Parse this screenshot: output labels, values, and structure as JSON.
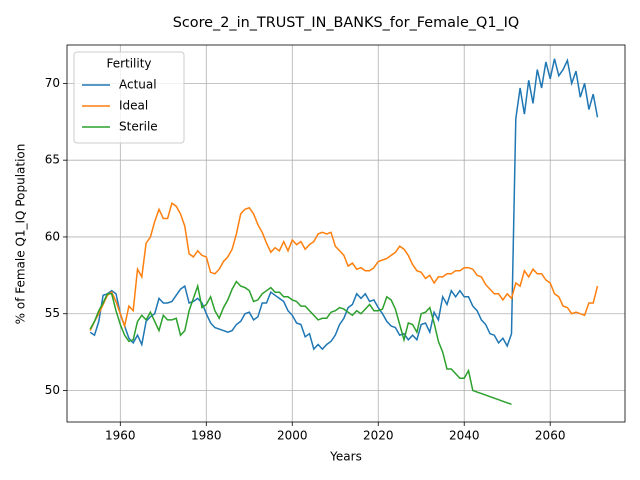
{
  "chart_data": {
    "type": "line",
    "title": "Score_2_in_TRUST_IN_BANKS_for_Female_Q1_IQ",
    "x_label": "Years",
    "y_label": "% of Female Q1_IQ Population",
    "legend_title": "Fertility",
    "legend_loc": "upper left",
    "grid": true,
    "xlim": [
      1947.6,
      2077.4
    ],
    "ylim": [
      47.95,
      72.5
    ],
    "xticks": [
      1960,
      1980,
      2000,
      2020,
      2040,
      2060
    ],
    "yticks": [
      50,
      55,
      60,
      65,
      70
    ],
    "x": [
      1953,
      1954,
      1955,
      1956,
      1957,
      1958,
      1959,
      1960,
      1961,
      1962,
      1963,
      1964,
      1965,
      1966,
      1967,
      1968,
      1969,
      1970,
      1971,
      1972,
      1973,
      1974,
      1975,
      1976,
      1977,
      1978,
      1979,
      1980,
      1981,
      1982,
      1983,
      1984,
      1985,
      1986,
      1987,
      1988,
      1989,
      1990,
      1991,
      1992,
      1993,
      1994,
      1995,
      1996,
      1997,
      1998,
      1999,
      2000,
      2001,
      2002,
      2003,
      2004,
      2005,
      2006,
      2007,
      2008,
      2009,
      2010,
      2011,
      2012,
      2013,
      2014,
      2015,
      2016,
      2017,
      2018,
      2019,
      2020,
      2021,
      2022,
      2023,
      2024,
      2025,
      2026,
      2027,
      2028,
      2029,
      2030,
      2031,
      2032,
      2033,
      2034,
      2035,
      2036,
      2037,
      2038,
      2039,
      2040,
      2041,
      2042,
      2043,
      2044,
      2045,
      2046,
      2047,
      2048,
      2049,
      2050,
      2051,
      2052,
      2053,
      2054,
      2055,
      2056,
      2057,
      2058,
      2059,
      2060,
      2061,
      2062,
      2063,
      2064,
      2065,
      2066,
      2067,
      2068,
      2069,
      2070,
      2071
    ],
    "series": [
      {
        "name": "Actual",
        "color": "#1f77b4",
        "values": [
          53.8,
          53.6,
          54.5,
          56.2,
          56.3,
          56.5,
          56.3,
          55.0,
          54.2,
          53.4,
          53.1,
          53.6,
          53.0,
          54.5,
          54.8,
          55.0,
          56.0,
          55.7,
          55.7,
          55.8,
          56.2,
          56.6,
          56.8,
          55.7,
          55.8,
          56.0,
          55.7,
          55.0,
          54.4,
          54.1,
          54.0,
          53.9,
          53.8,
          53.9,
          54.3,
          54.5,
          55.0,
          55.1,
          54.6,
          54.8,
          55.7,
          55.7,
          56.4,
          56.2,
          56.0,
          55.8,
          55.2,
          54.9,
          54.4,
          54.3,
          53.5,
          53.7,
          52.7,
          53.0,
          52.7,
          53.0,
          53.2,
          53.6,
          54.3,
          54.7,
          55.4,
          55.6,
          56.3,
          56.0,
          56.3,
          55.8,
          55.9,
          55.4,
          55.0,
          54.5,
          54.2,
          54.1,
          53.6,
          53.7,
          53.3,
          53.6,
          53.3,
          54.3,
          54.4,
          53.8,
          55.1,
          54.6,
          56.1,
          55.6,
          56.5,
          56.1,
          56.5,
          56.1,
          56.1,
          55.5,
          55.2,
          54.6,
          54.3,
          53.7,
          53.6,
          53.1,
          53.4,
          52.9,
          53.7,
          67.7,
          69.7,
          68.0,
          70.2,
          68.7,
          70.9,
          69.7,
          71.4,
          70.3,
          71.6,
          70.5,
          70.9,
          71.5,
          70.0,
          70.8,
          69.1,
          70.0,
          68.3,
          69.3,
          67.8
        ]
      },
      {
        "name": "Ideal",
        "color": "#ff7f0e",
        "values": [
          53.9,
          54.5,
          55.0,
          55.6,
          56.2,
          56.4,
          55.8,
          55.0,
          54.2,
          55.5,
          55.2,
          57.9,
          57.4,
          59.6,
          60.0,
          61.0,
          61.8,
          61.2,
          61.2,
          62.2,
          62.0,
          61.5,
          60.7,
          58.9,
          58.7,
          59.1,
          58.8,
          58.7,
          57.7,
          57.6,
          57.9,
          58.4,
          58.7,
          59.2,
          60.2,
          61.5,
          61.8,
          61.9,
          61.5,
          60.8,
          60.3,
          59.6,
          59.0,
          59.3,
          59.1,
          59.7,
          59.1,
          59.8,
          59.5,
          59.7,
          59.2,
          59.5,
          59.7,
          60.2,
          60.3,
          60.2,
          60.3,
          59.4,
          59.1,
          58.8,
          58.1,
          58.3,
          57.9,
          58.0,
          57.8,
          57.8,
          58.0,
          58.4,
          58.5,
          58.6,
          58.8,
          59.0,
          59.4,
          59.2,
          58.8,
          58.2,
          57.8,
          57.7,
          57.3,
          57.5,
          57.0,
          57.4,
          57.4,
          57.6,
          57.6,
          57.8,
          57.8,
          58.0,
          58.0,
          57.9,
          57.5,
          57.4,
          56.9,
          56.6,
          56.3,
          56.3,
          55.9,
          56.3,
          56.0,
          57.0,
          56.8,
          57.8,
          57.4,
          57.9,
          57.6,
          57.6,
          57.2,
          57.0,
          56.3,
          56.1,
          55.5,
          55.4,
          55.0,
          55.1,
          55.0,
          54.9,
          55.7,
          55.7,
          56.8
        ]
      },
      {
        "name": "Sterile",
        "color": "#2ca02c",
        "values": [
          54.0,
          54.5,
          55.2,
          55.7,
          56.3,
          56.3,
          55.2,
          54.3,
          53.6,
          53.2,
          53.3,
          54.5,
          54.9,
          54.6,
          55.1,
          54.5,
          53.9,
          54.9,
          54.6,
          54.6,
          54.7,
          53.6,
          53.9,
          55.2,
          56.0,
          56.8,
          55.4,
          55.6,
          56.1,
          55.2,
          54.7,
          55.4,
          55.9,
          56.6,
          57.1,
          56.8,
          56.7,
          56.5,
          55.8,
          55.9,
          56.3,
          56.5,
          56.7,
          56.4,
          56.4,
          56.1,
          56.1,
          55.9,
          55.8,
          55.5,
          55.5,
          55.2,
          54.9,
          54.6,
          54.7,
          54.7,
          55.1,
          55.2,
          55.4,
          55.3,
          55.1,
          54.9,
          55.2,
          55.0,
          55.3,
          55.6,
          55.2,
          55.2,
          55.3,
          56.1,
          55.9,
          55.3,
          54.3,
          53.3,
          54.4,
          54.3,
          53.8,
          55.0,
          55.1,
          55.4,
          54.4,
          53.2,
          52.5,
          51.4,
          51.4,
          51.1,
          50.8,
          50.8,
          51.3,
          50.0,
          49.9,
          49.8,
          49.7,
          49.6,
          49.5,
          49.4,
          49.3,
          49.2,
          49.1,
          null,
          null,
          null,
          null,
          null,
          null,
          null,
          null,
          null,
          null,
          null,
          null,
          null,
          null,
          null,
          null,
          null,
          null,
          null,
          null
        ]
      }
    ]
  }
}
